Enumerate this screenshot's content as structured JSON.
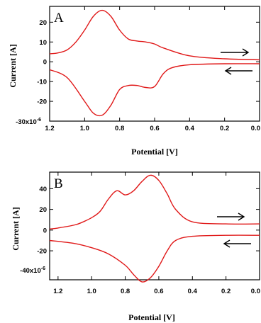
{
  "chart_data": [
    {
      "type": "line",
      "panel_label": "A",
      "xlabel": "Potential [V]",
      "ylabel": "Current [A]",
      "xlim": [
        1.2,
        0.0
      ],
      "ylim": [
        -30,
        28
      ],
      "y_exponent_label": "-30x10",
      "y_exponent_sup": "-6",
      "xticks": [
        "1.2",
        "1.0",
        "0.8",
        "0.6",
        "0.4",
        "0.2",
        "0.0"
      ],
      "xtick_values": [
        1.2,
        1.0,
        0.8,
        0.6,
        0.4,
        0.2,
        0.0
      ],
      "yticks": [
        "20",
        "10",
        "0",
        "-10",
        "-20"
      ],
      "ytick_values": [
        20,
        10,
        0,
        -10,
        -20
      ],
      "series": [
        {
          "x": [
            0.0,
            0.2,
            0.4,
            0.55,
            0.6,
            0.65,
            0.7,
            0.75,
            0.8,
            0.85,
            0.9,
            0.95,
            1.0,
            1.05,
            1.1,
            1.15,
            1.2
          ],
          "values": [
            1.0,
            1.5,
            3.0,
            7.0,
            9.0,
            10.0,
            10.5,
            11.5,
            16.0,
            23.0,
            26.0,
            23.0,
            16.0,
            10.0,
            6.0,
            4.5,
            4.0
          ]
        },
        {
          "x": [
            1.2,
            1.1,
            1.0,
            0.95,
            0.9,
            0.85,
            0.8,
            0.75,
            0.7,
            0.65,
            0.6,
            0.55,
            0.5,
            0.4,
            0.2,
            0.0
          ],
          "values": [
            -4.0,
            -8.0,
            -20.0,
            -26.0,
            -27.0,
            -22.0,
            -14.0,
            -12.0,
            -12.0,
            -13.0,
            -12.5,
            -6.0,
            -3.0,
            -1.5,
            -1.0,
            -1.0
          ]
        }
      ],
      "arrows": [
        "right",
        "left"
      ]
    },
    {
      "type": "line",
      "panel_label": "B",
      "xlabel": "Potential [V]",
      "ylabel": "Current [A]",
      "xlim": [
        1.25,
        0.0
      ],
      "ylim": [
        -48,
        56
      ],
      "y_exponent_label": "-40x10",
      "y_exponent_sup": "-6",
      "xticks": [
        "1.2",
        "1.0",
        "0.8",
        "0.6",
        "0.4",
        "0.2",
        "0.0"
      ],
      "xtick_values": [
        1.2,
        1.0,
        0.8,
        0.6,
        0.4,
        0.2,
        0.0
      ],
      "yticks": [
        "40",
        "20",
        "0",
        "-20"
      ],
      "ytick_values": [
        40,
        20,
        0,
        -20
      ],
      "series": [
        {
          "x": [
            0.0,
            0.2,
            0.4,
            0.5,
            0.55,
            0.6,
            0.65,
            0.7,
            0.75,
            0.8,
            0.85,
            0.9,
            0.95,
            1.0,
            1.05,
            1.1,
            1.2,
            1.25
          ],
          "values": [
            6.0,
            6.0,
            8.0,
            20.0,
            35.0,
            48.0,
            53.0,
            47.0,
            38.0,
            34.0,
            38.0,
            30.0,
            18.0,
            12.0,
            8.0,
            5.0,
            2.0,
            1.0
          ]
        },
        {
          "x": [
            1.25,
            1.1,
            1.0,
            0.9,
            0.8,
            0.75,
            0.7,
            0.65,
            0.6,
            0.55,
            0.5,
            0.4,
            0.2,
            0.0
          ],
          "values": [
            -10.0,
            -13.0,
            -17.0,
            -23.0,
            -34.0,
            -43.0,
            -50.0,
            -46.0,
            -35.0,
            -20.0,
            -10.0,
            -6.0,
            -5.0,
            -5.0
          ]
        }
      ],
      "arrows": [
        "right",
        "left"
      ]
    }
  ]
}
